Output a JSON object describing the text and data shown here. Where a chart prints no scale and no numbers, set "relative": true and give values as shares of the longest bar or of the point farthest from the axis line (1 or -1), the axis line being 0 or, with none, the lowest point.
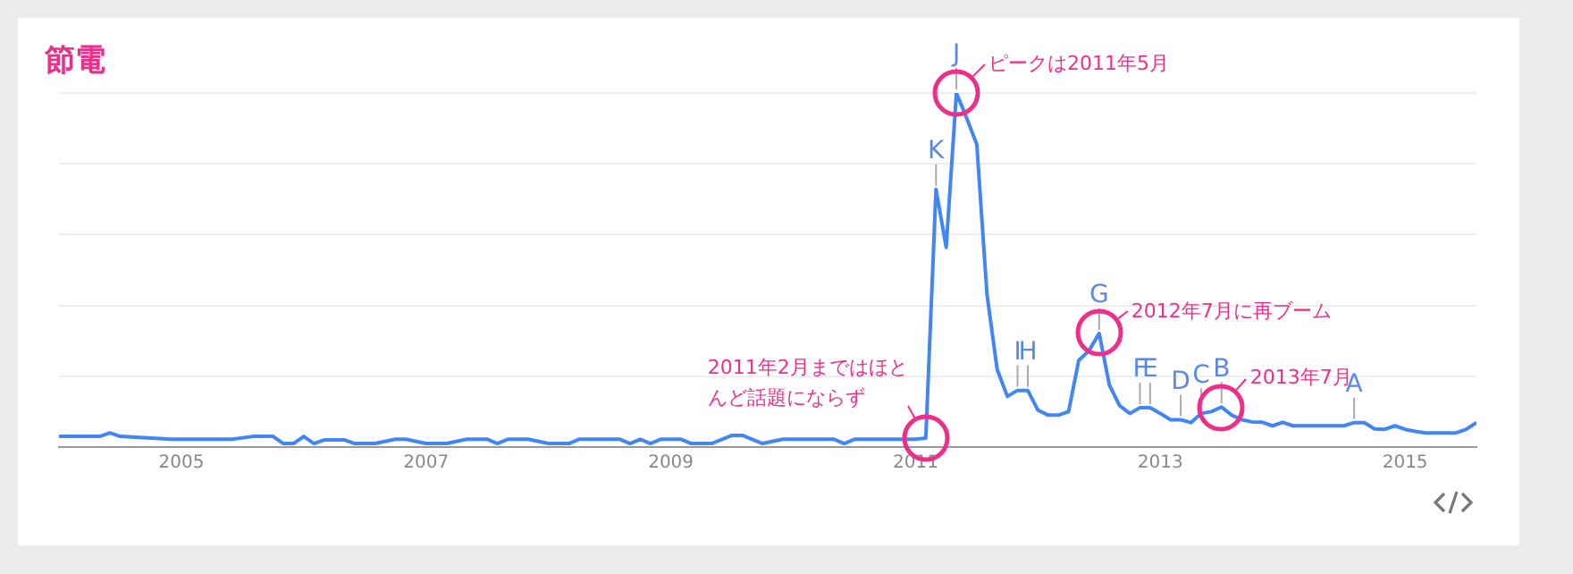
{
  "chart_data": {
    "type": "line",
    "title": "節電",
    "relative": true,
    "grid": "y",
    "legend": false,
    "marker": "none",
    "line_style": "solid",
    "xlim": [
      "2004-01",
      "2015-08"
    ],
    "xticks": [
      "2005",
      "2007",
      "2009",
      "2011",
      "2013",
      "2015"
    ],
    "series": [
      {
        "color": "#4285f4",
        "x": [
          "2004-01",
          "2004-05",
          "2004-06",
          "2004-07",
          "2004-12",
          "2005-06",
          "2005-08",
          "2005-10",
          "2005-11",
          "2005-12",
          "2006-01",
          "2006-02",
          "2006-03",
          "2006-05",
          "2006-06",
          "2006-08",
          "2006-10",
          "2006-11",
          "2007-01",
          "2007-03",
          "2007-05",
          "2007-07",
          "2007-08",
          "2007-09",
          "2007-11",
          "2008-01",
          "2008-03",
          "2008-04",
          "2008-08",
          "2008-09",
          "2008-10",
          "2008-11",
          "2008-12",
          "2009-02",
          "2009-03",
          "2009-05",
          "2009-07",
          "2009-08",
          "2009-10",
          "2009-12",
          "2010-05",
          "2010-06",
          "2010-07",
          "2010-09",
          "2010-11",
          "2010-12",
          "2011-01",
          "2011-02",
          "2011-03",
          "2011-04",
          "2011-05",
          "2011-06",
          "2011-07",
          "2011-08",
          "2011-09",
          "2011-10",
          "2011-11",
          "2011-12",
          "2012-01",
          "2012-02",
          "2012-03",
          "2012-04",
          "2012-05",
          "2012-06",
          "2012-07",
          "2012-08",
          "2012-09",
          "2012-10",
          "2012-11",
          "2012-12",
          "2013-01",
          "2013-02",
          "2013-03",
          "2013-04",
          "2013-05",
          "2013-06",
          "2013-07",
          "2013-08",
          "2013-09",
          "2013-10",
          "2013-11",
          "2013-12",
          "2014-01",
          "2014-02",
          "2014-03",
          "2014-04",
          "2014-05",
          "2014-06",
          "2014-07",
          "2014-08",
          "2014-09",
          "2014-10",
          "2014-11",
          "2014-12",
          "2015-01",
          "2015-02",
          "2015-03",
          "2015-04",
          "2015-05",
          "2015-06",
          "2015-07",
          "2015-08"
        ],
        "values": [
          0.03,
          0.03,
          0.04,
          0.03,
          0.022,
          0.022,
          0.03,
          0.03,
          0.01,
          0.01,
          0.03,
          0.01,
          0.02,
          0.02,
          0.01,
          0.01,
          0.022,
          0.022,
          0.01,
          0.01,
          0.022,
          0.022,
          0.01,
          0.022,
          0.022,
          0.01,
          0.01,
          0.022,
          0.022,
          0.01,
          0.022,
          0.01,
          0.022,
          0.022,
          0.01,
          0.01,
          0.033,
          0.033,
          0.01,
          0.022,
          0.022,
          0.01,
          0.022,
          0.022,
          0.022,
          0.022,
          0.022,
          0.025,
          0.728,
          0.564,
          1.0,
          0.93,
          0.855,
          0.431,
          0.219,
          0.143,
          0.16,
          0.16,
          0.104,
          0.09,
          0.09,
          0.1,
          0.245,
          0.272,
          0.321,
          0.175,
          0.117,
          0.095,
          0.111,
          0.111,
          0.095,
          0.077,
          0.077,
          0.069,
          0.095,
          0.1,
          0.113,
          0.09,
          0.077,
          0.071,
          0.07,
          0.06,
          0.07,
          0.06,
          0.06,
          0.06,
          0.06,
          0.06,
          0.06,
          0.069,
          0.069,
          0.051,
          0.05,
          0.06,
          0.05,
          0.044,
          0.04,
          0.04,
          0.04,
          0.04,
          0.05,
          0.069
        ]
      }
    ],
    "annotations": [
      {
        "text": "K",
        "x": "2011-03",
        "y": 0.728
      },
      {
        "text": "J",
        "x": "2011-05",
        "y": 1.0
      },
      {
        "text": "I",
        "x": "2011-11",
        "y": 0.16
      },
      {
        "text": "H",
        "x": "2011-12",
        "y": 0.16
      },
      {
        "text": "G",
        "x": "2012-07",
        "y": 0.321
      },
      {
        "text": "F",
        "x": "2012-11",
        "y": 0.111
      },
      {
        "text": "E",
        "x": "2012-12",
        "y": 0.111
      },
      {
        "text": "D",
        "x": "2013-03",
        "y": 0.077
      },
      {
        "text": "C",
        "x": "2013-05",
        "y": 0.095
      },
      {
        "text": "B",
        "x": "2013-07",
        "y": 0.113
      },
      {
        "text": "A",
        "x": "2014-08",
        "y": 0.069
      },
      {
        "text": "ピークは2011年5月",
        "x": "2011-05",
        "y": 1.0
      },
      {
        "text": "2012年7月に再ブーム",
        "x": "2012-07",
        "y": 0.321
      },
      {
        "text": "2013年7月",
        "x": "2013-07",
        "y": 0.113
      },
      {
        "text": "2011年2月まではほとんど話題にならず",
        "x": "2011-02",
        "y": 0.025
      }
    ]
  }
}
